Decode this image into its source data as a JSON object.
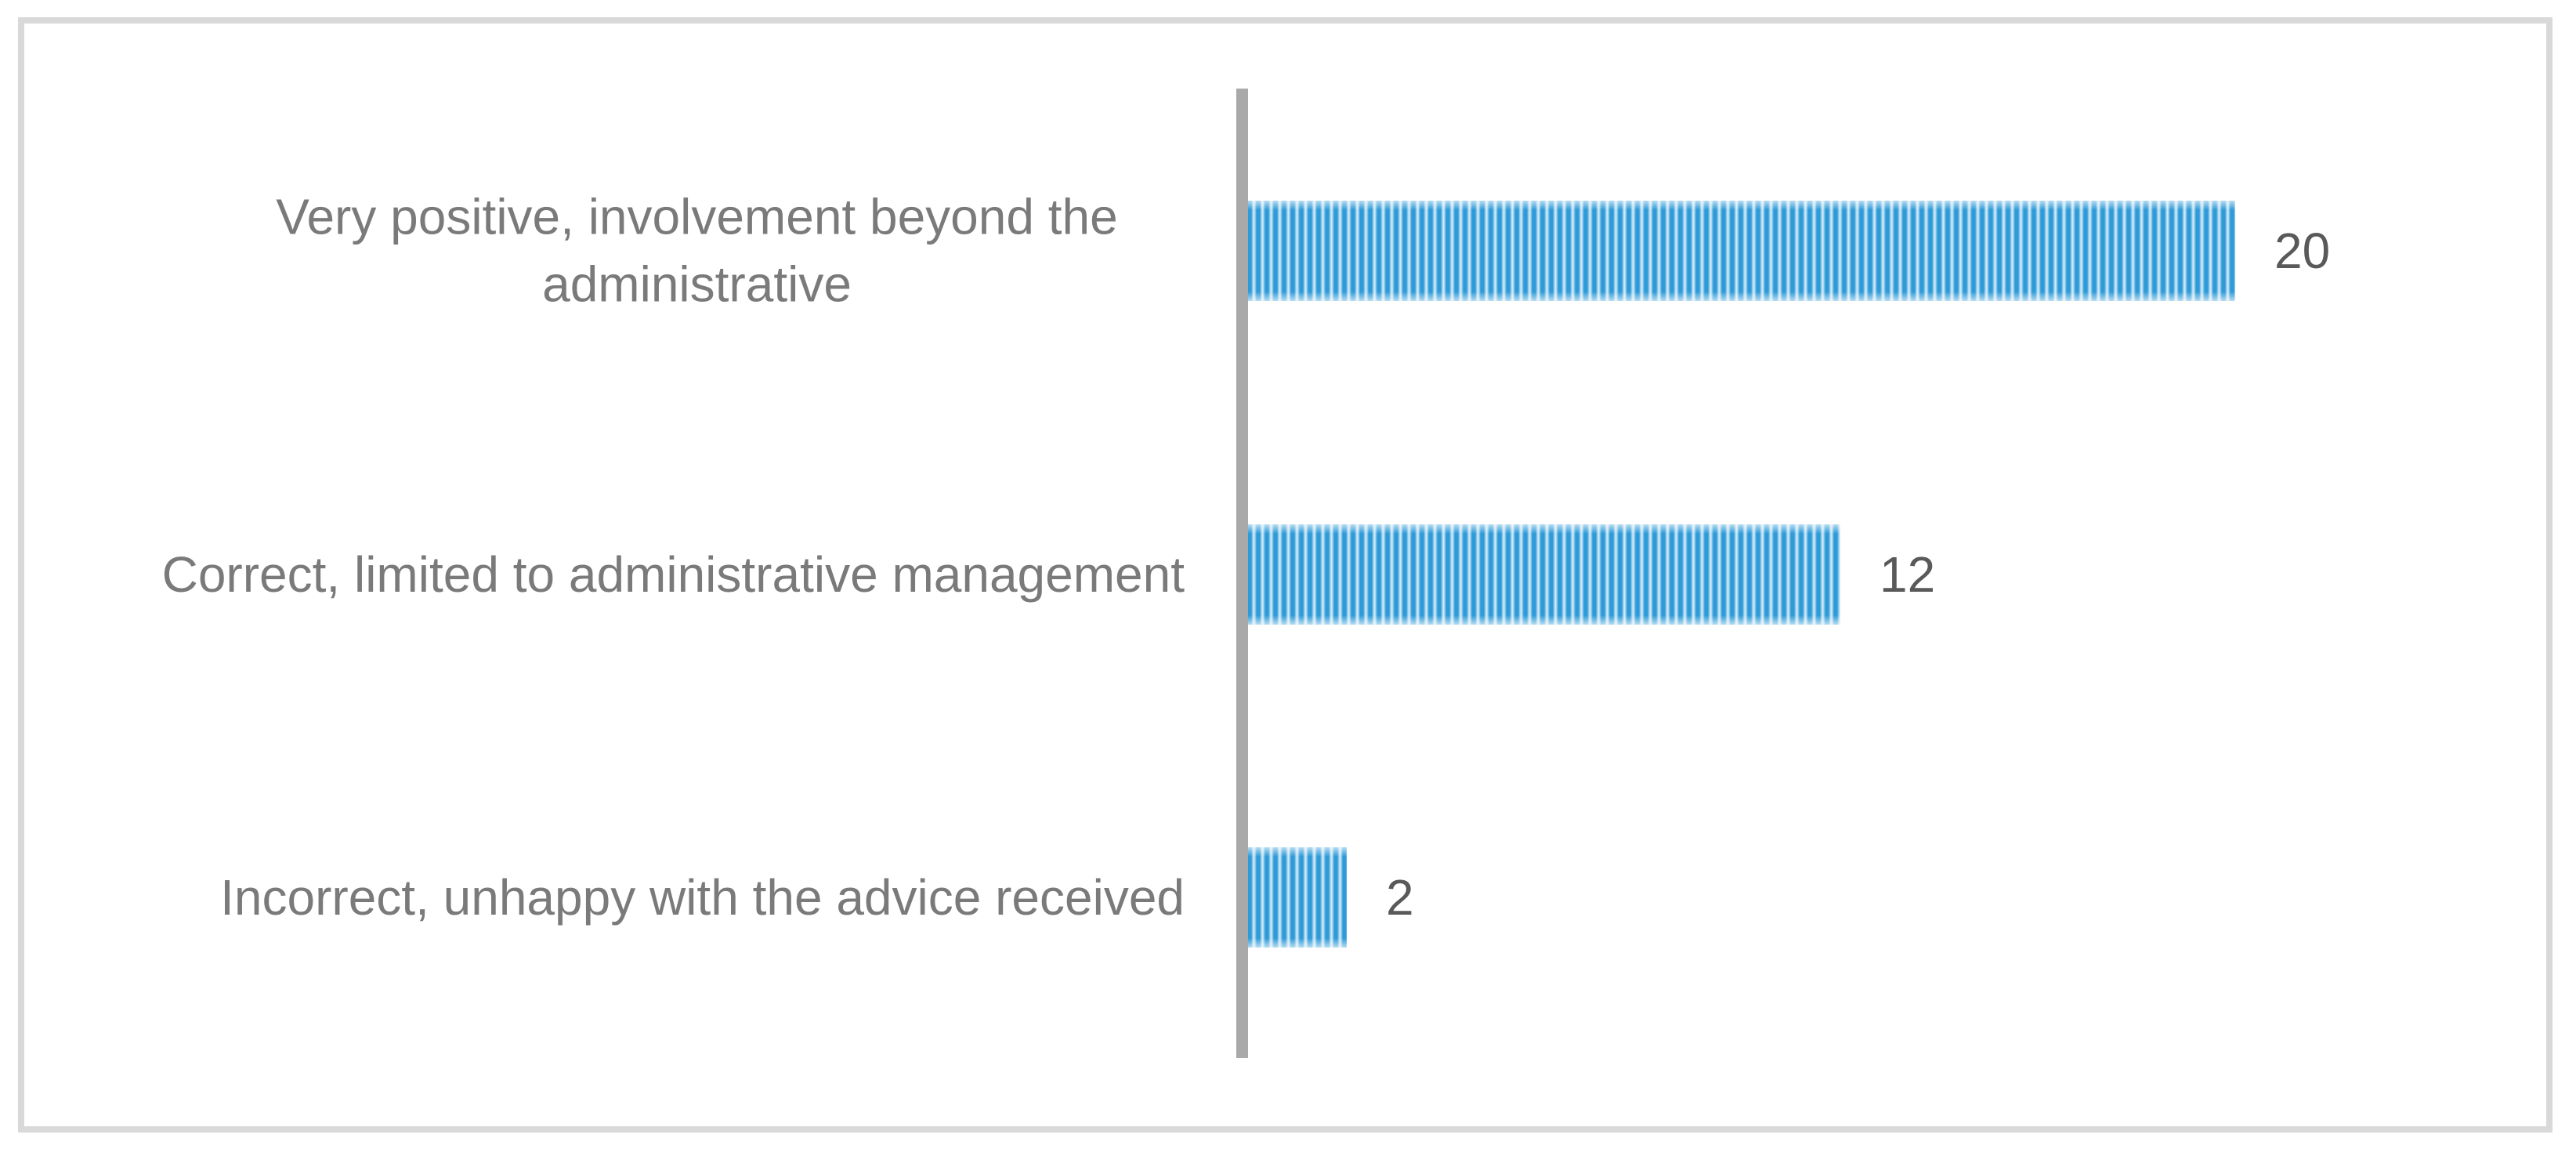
{
  "chart_data": {
    "type": "bar",
    "orientation": "horizontal",
    "title": "",
    "xlabel": "",
    "ylabel": "",
    "categories": [
      "Very positive, involvement beyond the administrative",
      "Correct, limited to administrative management",
      "Incorrect, unhappy with the advice received"
    ],
    "values": [
      20,
      12,
      2
    ],
    "value_labels": [
      "20",
      "12",
      "2"
    ],
    "xlim": [
      0,
      20
    ],
    "grid": false,
    "legend": false,
    "bar_pattern": "vertical-stripes",
    "colors": {
      "bar_stripe": "#2E9BD8",
      "bar_stripe_light": "#D9EDF9",
      "axis_line": "#A9A9A9",
      "category_label": "#7A7A7A",
      "value_label": "#595959",
      "frame_border": "#D9D9D9",
      "background": "#FFFFFF"
    }
  }
}
